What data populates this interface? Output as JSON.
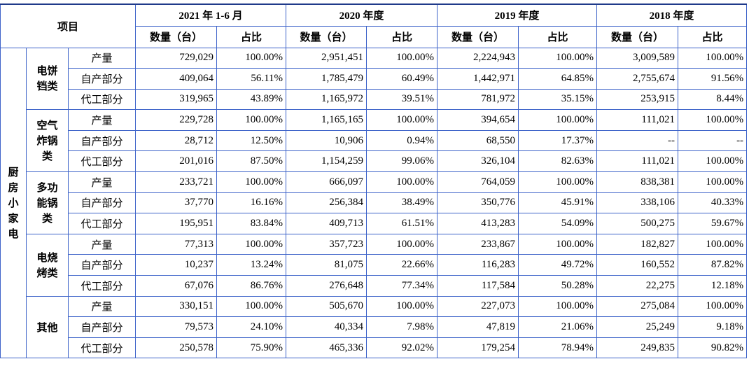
{
  "header": {
    "item": "项目",
    "columns": [
      {
        "year": "2021 年 1-6 月",
        "qty": "数量（台）",
        "share": "占比"
      },
      {
        "year": "2020 年度",
        "qty": "数量（台）",
        "share": "占比"
      },
      {
        "year": "2019 年度",
        "qty": "数量（台）",
        "share": "占比"
      },
      {
        "year": "2018 年度",
        "qty": "数量（台）",
        "share": "占比"
      }
    ]
  },
  "body": {
    "category": "厨房小家电",
    "groups": [
      {
        "name": "电饼铛类",
        "rows": [
          {
            "label": "产量",
            "cells": [
              "729,029",
              "100.00%",
              "2,951,451",
              "100.00%",
              "2,224,943",
              "100.00%",
              "3,009,589",
              "100.00%"
            ]
          },
          {
            "label": "自产部分",
            "cells": [
              "409,064",
              "56.11%",
              "1,785,479",
              "60.49%",
              "1,442,971",
              "64.85%",
              "2,755,674",
              "91.56%"
            ]
          },
          {
            "label": "代工部分",
            "cells": [
              "319,965",
              "43.89%",
              "1,165,972",
              "39.51%",
              "781,972",
              "35.15%",
              "253,915",
              "8.44%"
            ]
          }
        ]
      },
      {
        "name": "空气炸锅类",
        "rows": [
          {
            "label": "产量",
            "cells": [
              "229,728",
              "100.00%",
              "1,165,165",
              "100.00%",
              "394,654",
              "100.00%",
              "111,021",
              "100.00%"
            ]
          },
          {
            "label": "自产部分",
            "cells": [
              "28,712",
              "12.50%",
              "10,906",
              "0.94%",
              "68,550",
              "17.37%",
              "--",
              "--"
            ]
          },
          {
            "label": "代工部分",
            "cells": [
              "201,016",
              "87.50%",
              "1,154,259",
              "99.06%",
              "326,104",
              "82.63%",
              "111,021",
              "100.00%"
            ]
          }
        ]
      },
      {
        "name": "多功能锅类",
        "rows": [
          {
            "label": "产量",
            "cells": [
              "233,721",
              "100.00%",
              "666,097",
              "100.00%",
              "764,059",
              "100.00%",
              "838,381",
              "100.00%"
            ]
          },
          {
            "label": "自产部分",
            "cells": [
              "37,770",
              "16.16%",
              "256,384",
              "38.49%",
              "350,776",
              "45.91%",
              "338,106",
              "40.33%"
            ]
          },
          {
            "label": "代工部分",
            "cells": [
              "195,951",
              "83.84%",
              "409,713",
              "61.51%",
              "413,283",
              "54.09%",
              "500,275",
              "59.67%"
            ]
          }
        ]
      },
      {
        "name": "电烧烤类",
        "rows": [
          {
            "label": "产量",
            "cells": [
              "77,313",
              "100.00%",
              "357,723",
              "100.00%",
              "233,867",
              "100.00%",
              "182,827",
              "100.00%"
            ]
          },
          {
            "label": "自产部分",
            "cells": [
              "10,237",
              "13.24%",
              "81,075",
              "22.66%",
              "116,283",
              "49.72%",
              "160,552",
              "87.82%"
            ]
          },
          {
            "label": "代工部分",
            "cells": [
              "67,076",
              "86.76%",
              "276,648",
              "77.34%",
              "117,584",
              "50.28%",
              "22,275",
              "12.18%"
            ]
          }
        ]
      },
      {
        "name": "其他",
        "rows": [
          {
            "label": "产量",
            "cells": [
              "330,151",
              "100.00%",
              "505,670",
              "100.00%",
              "227,073",
              "100.00%",
              "275,084",
              "100.00%"
            ]
          },
          {
            "label": "自产部分",
            "cells": [
              "79,573",
              "24.10%",
              "40,334",
              "7.98%",
              "47,819",
              "21.06%",
              "25,249",
              "9.18%"
            ]
          },
          {
            "label": "代工部分",
            "cells": [
              "250,578",
              "75.90%",
              "465,336",
              "92.02%",
              "179,254",
              "78.94%",
              "249,835",
              "90.82%"
            ]
          }
        ]
      }
    ]
  }
}
